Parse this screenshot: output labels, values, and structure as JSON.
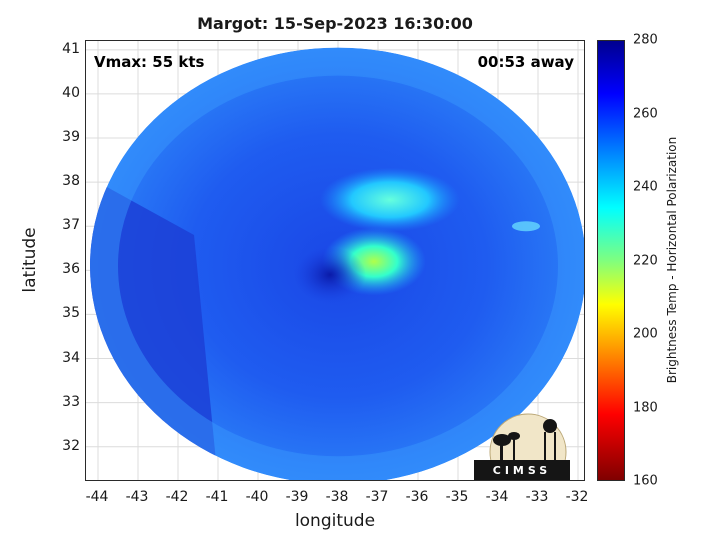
{
  "chart_data": {
    "type": "heatmap",
    "title": "Margot: 15-Sep-2023 16:30:00",
    "xlabel": "longitude",
    "ylabel": "latitude",
    "xlim": [
      -44.3,
      -31.8
    ],
    "ylim": [
      31.2,
      41.2
    ],
    "x_ticks": [
      "-44",
      "-43",
      "-42",
      "-41",
      "-40",
      "-39",
      "-38",
      "-37",
      "-36",
      "-35",
      "-34",
      "-33",
      "-32"
    ],
    "y_ticks": [
      "41",
      "40",
      "39",
      "38",
      "37",
      "36",
      "35",
      "34",
      "33",
      "32"
    ],
    "grid": true,
    "colorbar": {
      "label": "Brightness Temp - Horizontal Polarization",
      "ticks": [
        "280",
        "260",
        "240",
        "220",
        "200",
        "180",
        "160"
      ],
      "range": [
        160,
        280
      ],
      "colormap": "jet"
    },
    "annotations": {
      "vmax": "Vmax: 55 kts",
      "time_offset": "00:53 away"
    },
    "swath": {
      "center_lon": -38.0,
      "center_lat": 36.1,
      "radius_deg_lon": 6.2,
      "radius_deg_lat": 4.95
    },
    "features": [
      {
        "label": "eyewall band",
        "lon": -37.1,
        "lat": 36.2,
        "value": 215
      },
      {
        "label": "outer band",
        "lon": -36.7,
        "lat": 37.6,
        "value": 235
      },
      {
        "label": "eye",
        "lon": -38.2,
        "lat": 35.9,
        "value": 268
      }
    ]
  },
  "logo": {
    "text": "CIMSS"
  }
}
